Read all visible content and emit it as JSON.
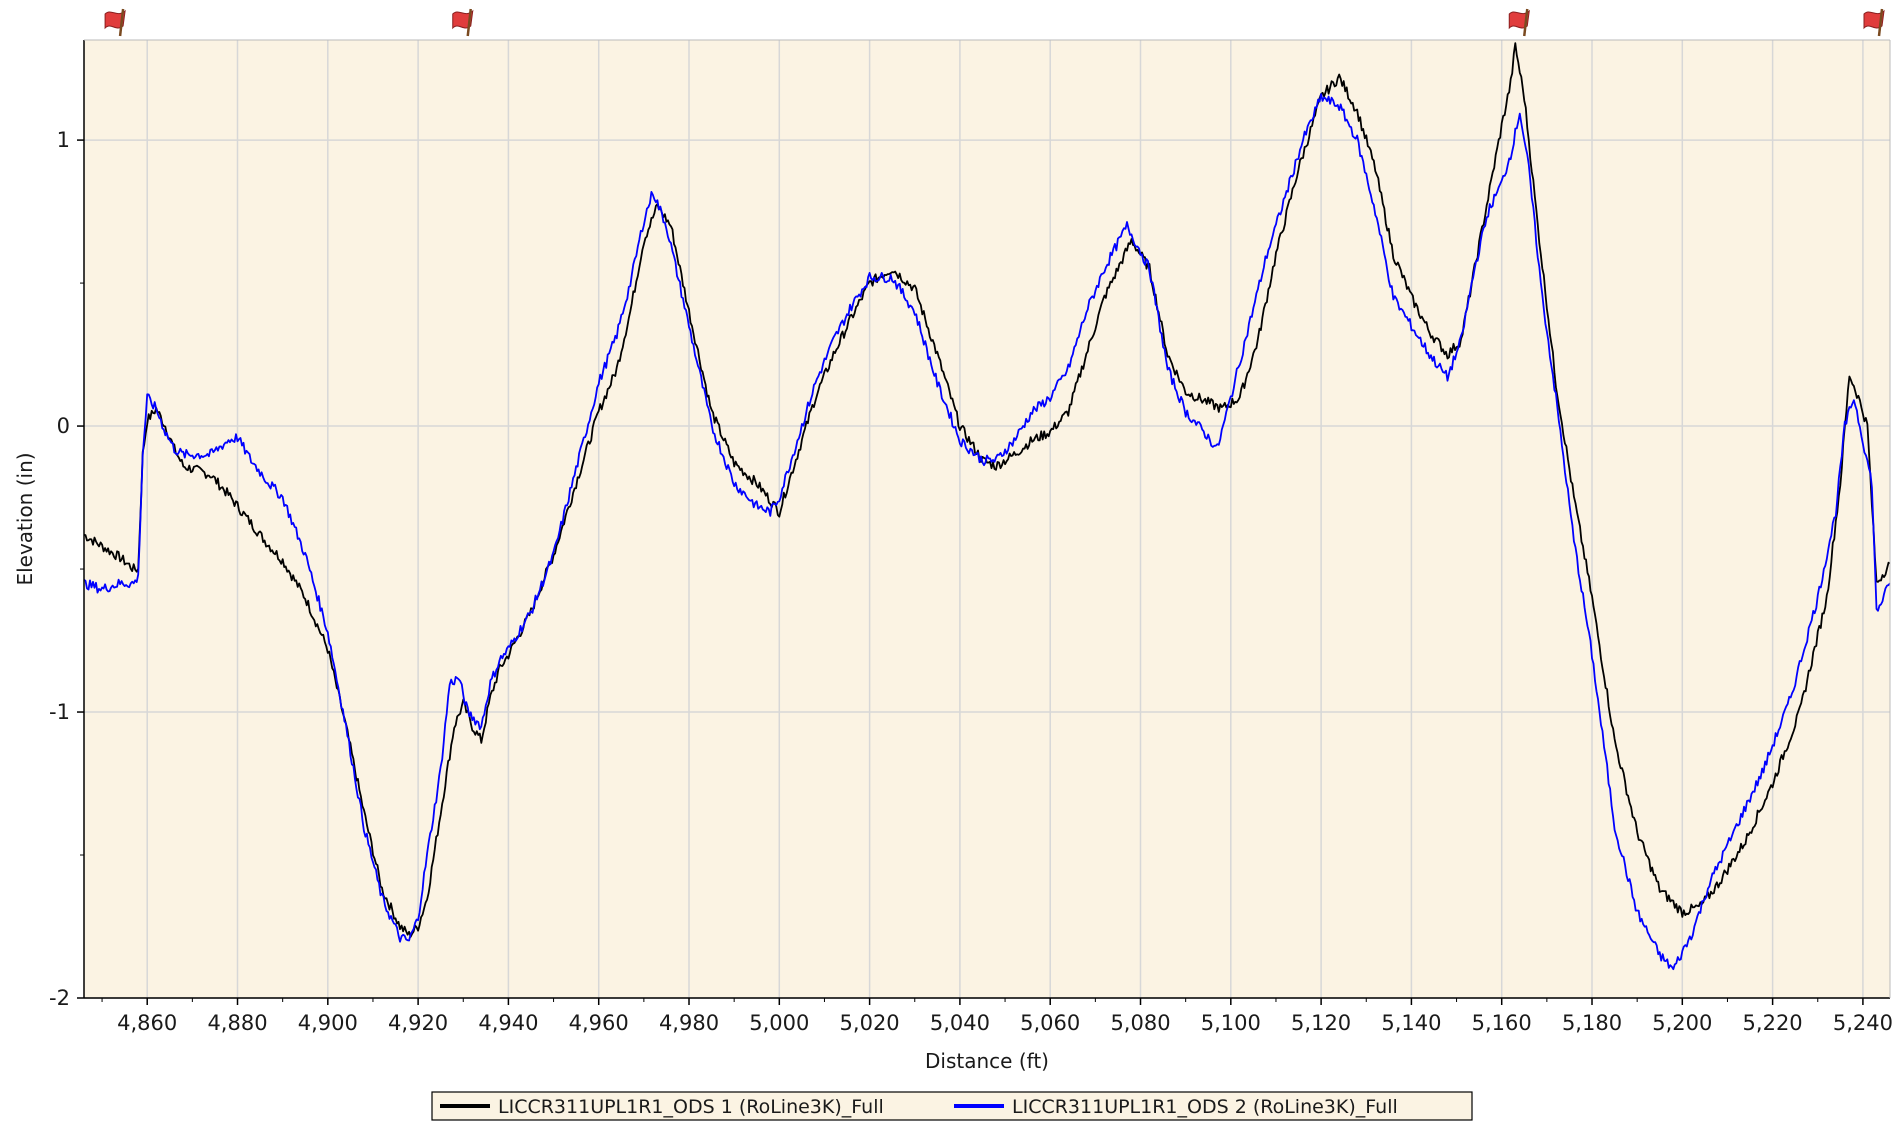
{
  "colors": {
    "plot_background": "#fbf3e3",
    "grid": "#d7d7d7",
    "axis": "#000000",
    "series_1": "#000000",
    "series_2": "#0000ff",
    "flag": "#e03c3c"
  },
  "chart_data": {
    "type": "line",
    "title": "",
    "xlabel": "Distance (ft)",
    "ylabel": "Elevation (in)",
    "xlim": [
      4846,
      5246
    ],
    "ylim": [
      -2,
      1.35
    ],
    "grid": true,
    "legend_position": "bottom-center",
    "x_ticks": [
      4860,
      4880,
      4900,
      4920,
      4940,
      4960,
      4980,
      5000,
      5020,
      5040,
      5060,
      5080,
      5100,
      5120,
      5140,
      5160,
      5180,
      5200,
      5220,
      5240
    ],
    "x_tick_labels": [
      "4,860",
      "4,880",
      "4,900",
      "4,920",
      "4,940",
      "4,960",
      "4,980",
      "5,000",
      "5,020",
      "5,040",
      "5,060",
      "5,080",
      "5,100",
      "5,120",
      "5,140",
      "5,160",
      "5,180",
      "5,200",
      "5,220",
      "5,240"
    ],
    "y_ticks": [
      -2,
      -1,
      0,
      1
    ],
    "y_tick_labels": [
      "-2",
      "-1",
      "0",
      "1"
    ],
    "event_flags_x": [
      4852,
      4929,
      5163,
      5246
    ],
    "series": [
      {
        "name": "LICCR311UPL1R1_ODS 1 (RoLine3K)_Full",
        "color": "#000000",
        "points": [
          [
            4846,
            -0.38
          ],
          [
            4850,
            -0.42
          ],
          [
            4854,
            -0.46
          ],
          [
            4857,
            -0.5
          ],
          [
            4858,
            -0.5
          ],
          [
            4859,
            -0.1
          ],
          [
            4860,
            0.02
          ],
          [
            4862,
            0.06
          ],
          [
            4864,
            0.0
          ],
          [
            4866,
            -0.08
          ],
          [
            4868,
            -0.14
          ],
          [
            4870,
            -0.15
          ],
          [
            4874,
            -0.17
          ],
          [
            4878,
            -0.24
          ],
          [
            4882,
            -0.32
          ],
          [
            4886,
            -0.4
          ],
          [
            4890,
            -0.47
          ],
          [
            4895,
            -0.6
          ],
          [
            4900,
            -0.78
          ],
          [
            4904,
            -1.05
          ],
          [
            4908,
            -1.35
          ],
          [
            4912,
            -1.62
          ],
          [
            4916,
            -1.75
          ],
          [
            4918,
            -1.78
          ],
          [
            4920,
            -1.75
          ],
          [
            4922,
            -1.65
          ],
          [
            4925,
            -1.35
          ],
          [
            4928,
            -1.05
          ],
          [
            4930,
            -0.97
          ],
          [
            4932,
            -1.05
          ],
          [
            4934,
            -1.1
          ],
          [
            4936,
            -0.95
          ],
          [
            4938,
            -0.85
          ],
          [
            4940,
            -0.8
          ],
          [
            4945,
            -0.65
          ],
          [
            4950,
            -0.45
          ],
          [
            4955,
            -0.2
          ],
          [
            4960,
            0.05
          ],
          [
            4964,
            0.2
          ],
          [
            4967,
            0.4
          ],
          [
            4970,
            0.65
          ],
          [
            4973,
            0.77
          ],
          [
            4976,
            0.7
          ],
          [
            4980,
            0.4
          ],
          [
            4985,
            0.05
          ],
          [
            4990,
            -0.13
          ],
          [
            4995,
            -0.2
          ],
          [
            4998,
            -0.26
          ],
          [
            5000,
            -0.3
          ],
          [
            5004,
            -0.1
          ],
          [
            5008,
            0.1
          ],
          [
            5012,
            0.25
          ],
          [
            5016,
            0.38
          ],
          [
            5020,
            0.5
          ],
          [
            5025,
            0.55
          ],
          [
            5030,
            0.48
          ],
          [
            5035,
            0.25
          ],
          [
            5040,
            0.0
          ],
          [
            5045,
            -0.12
          ],
          [
            5048,
            -0.14
          ],
          [
            5052,
            -0.1
          ],
          [
            5056,
            -0.05
          ],
          [
            5060,
            -0.02
          ],
          [
            5064,
            0.05
          ],
          [
            5068,
            0.25
          ],
          [
            5072,
            0.45
          ],
          [
            5078,
            0.65
          ],
          [
            5082,
            0.55
          ],
          [
            5086,
            0.25
          ],
          [
            5090,
            0.12
          ],
          [
            5094,
            0.09
          ],
          [
            5098,
            0.06
          ],
          [
            5102,
            0.1
          ],
          [
            5106,
            0.3
          ],
          [
            5110,
            0.6
          ],
          [
            5115,
            0.9
          ],
          [
            5120,
            1.15
          ],
          [
            5124,
            1.22
          ],
          [
            5128,
            1.1
          ],
          [
            5132,
            0.9
          ],
          [
            5136,
            0.6
          ],
          [
            5140,
            0.45
          ],
          [
            5144,
            0.33
          ],
          [
            5148,
            0.25
          ],
          [
            5151,
            0.3
          ],
          [
            5154,
            0.55
          ],
          [
            5157,
            0.8
          ],
          [
            5160,
            1.05
          ],
          [
            5162,
            1.2
          ],
          [
            5163,
            1.33
          ],
          [
            5165,
            1.15
          ],
          [
            5168,
            0.7
          ],
          [
            5172,
            0.15
          ],
          [
            5176,
            -0.25
          ],
          [
            5180,
            -0.6
          ],
          [
            5185,
            -1.1
          ],
          [
            5190,
            -1.42
          ],
          [
            5195,
            -1.62
          ],
          [
            5200,
            -1.7
          ],
          [
            5204,
            -1.68
          ],
          [
            5208,
            -1.6
          ],
          [
            5214,
            -1.45
          ],
          [
            5220,
            -1.25
          ],
          [
            5226,
            -1.0
          ],
          [
            5232,
            -0.6
          ],
          [
            5235,
            -0.2
          ],
          [
            5237,
            0.18
          ],
          [
            5239,
            0.1
          ],
          [
            5241,
            0.0
          ],
          [
            5243,
            -0.55
          ],
          [
            5246,
            -0.48
          ]
        ]
      },
      {
        "name": "LICCR311UPL1R1_ODS 2 (RoLine3K)_Full",
        "color": "#0000ff",
        "points": [
          [
            4846,
            -0.55
          ],
          [
            4850,
            -0.57
          ],
          [
            4854,
            -0.55
          ],
          [
            4857,
            -0.55
          ],
          [
            4858,
            -0.53
          ],
          [
            4859,
            -0.1
          ],
          [
            4860,
            0.1
          ],
          [
            4862,
            0.06
          ],
          [
            4864,
            -0.02
          ],
          [
            4866,
            -0.08
          ],
          [
            4868,
            -0.1
          ],
          [
            4870,
            -0.1
          ],
          [
            4874,
            -0.1
          ],
          [
            4878,
            -0.05
          ],
          [
            4880,
            -0.04
          ],
          [
            4883,
            -0.12
          ],
          [
            4887,
            -0.2
          ],
          [
            4890,
            -0.25
          ],
          [
            4895,
            -0.45
          ],
          [
            4900,
            -0.72
          ],
          [
            4904,
            -1.05
          ],
          [
            4908,
            -1.4
          ],
          [
            4912,
            -1.65
          ],
          [
            4916,
            -1.79
          ],
          [
            4918,
            -1.8
          ],
          [
            4920,
            -1.72
          ],
          [
            4922,
            -1.5
          ],
          [
            4925,
            -1.2
          ],
          [
            4927,
            -0.9
          ],
          [
            4929,
            -0.88
          ],
          [
            4931,
            -1.0
          ],
          [
            4934,
            -1.05
          ],
          [
            4936,
            -0.9
          ],
          [
            4938,
            -0.82
          ],
          [
            4940,
            -0.78
          ],
          [
            4945,
            -0.65
          ],
          [
            4950,
            -0.45
          ],
          [
            4955,
            -0.15
          ],
          [
            4960,
            0.15
          ],
          [
            4964,
            0.32
          ],
          [
            4967,
            0.5
          ],
          [
            4970,
            0.72
          ],
          [
            4972,
            0.82
          ],
          [
            4975,
            0.7
          ],
          [
            4980,
            0.35
          ],
          [
            4985,
            0.0
          ],
          [
            4990,
            -0.2
          ],
          [
            4995,
            -0.28
          ],
          [
            4998,
            -0.3
          ],
          [
            5000,
            -0.25
          ],
          [
            5004,
            -0.05
          ],
          [
            5008,
            0.15
          ],
          [
            5012,
            0.3
          ],
          [
            5016,
            0.42
          ],
          [
            5020,
            0.52
          ],
          [
            5025,
            0.52
          ],
          [
            5030,
            0.4
          ],
          [
            5035,
            0.15
          ],
          [
            5040,
            -0.05
          ],
          [
            5045,
            -0.12
          ],
          [
            5048,
            -0.12
          ],
          [
            5052,
            -0.05
          ],
          [
            5056,
            0.05
          ],
          [
            5060,
            0.1
          ],
          [
            5064,
            0.2
          ],
          [
            5068,
            0.4
          ],
          [
            5072,
            0.55
          ],
          [
            5077,
            0.7
          ],
          [
            5082,
            0.55
          ],
          [
            5086,
            0.2
          ],
          [
            5090,
            0.05
          ],
          [
            5094,
            -0.02
          ],
          [
            5097,
            -0.08
          ],
          [
            5100,
            0.1
          ],
          [
            5104,
            0.35
          ],
          [
            5108,
            0.6
          ],
          [
            5112,
            0.8
          ],
          [
            5116,
            1.0
          ],
          [
            5120,
            1.15
          ],
          [
            5124,
            1.12
          ],
          [
            5128,
            1.0
          ],
          [
            5132,
            0.75
          ],
          [
            5136,
            0.45
          ],
          [
            5140,
            0.35
          ],
          [
            5144,
            0.25
          ],
          [
            5148,
            0.17
          ],
          [
            5151,
            0.3
          ],
          [
            5154,
            0.55
          ],
          [
            5157,
            0.75
          ],
          [
            5160,
            0.85
          ],
          [
            5162,
            0.95
          ],
          [
            5164,
            1.1
          ],
          [
            5166,
            0.9
          ],
          [
            5169,
            0.45
          ],
          [
            5172,
            0.1
          ],
          [
            5176,
            -0.4
          ],
          [
            5180,
            -0.8
          ],
          [
            5185,
            -1.4
          ],
          [
            5190,
            -1.7
          ],
          [
            5195,
            -1.85
          ],
          [
            5198,
            -1.9
          ],
          [
            5202,
            -1.78
          ],
          [
            5206,
            -1.6
          ],
          [
            5212,
            -1.4
          ],
          [
            5218,
            -1.2
          ],
          [
            5224,
            -0.95
          ],
          [
            5230,
            -0.6
          ],
          [
            5234,
            -0.3
          ],
          [
            5236,
            0.0
          ],
          [
            5238,
            0.1
          ],
          [
            5240,
            -0.05
          ],
          [
            5242,
            -0.2
          ],
          [
            5243,
            -0.65
          ],
          [
            5246,
            -0.55
          ]
        ]
      }
    ]
  }
}
